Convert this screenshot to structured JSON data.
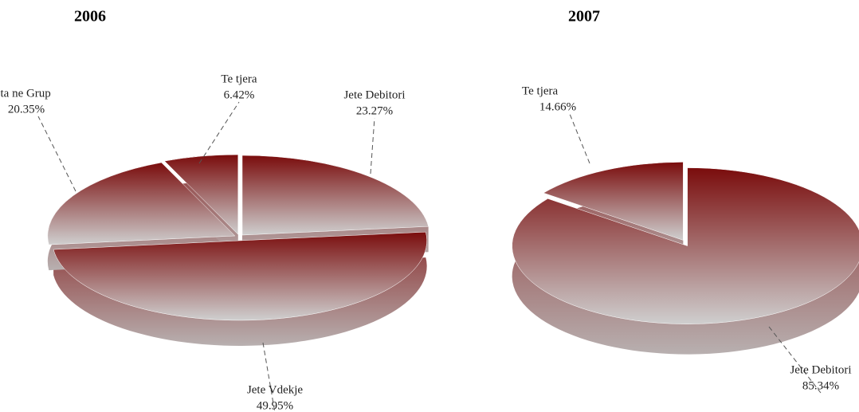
{
  "chart_data": [
    {
      "type": "pie3d",
      "title": "2006",
      "categories": [
        "Jete Debitori",
        "Jete Vdekje",
        "Jeta ne Grup",
        "Te tjera"
      ],
      "values": [
        23.27,
        49.95,
        20.35,
        6.42
      ],
      "value_labels": [
        "23.27%",
        "49.95%",
        "20.35%",
        "6.42%"
      ]
    },
    {
      "type": "pie3d",
      "title": "2007",
      "categories": [
        "Jete Debitori",
        "Te tjera"
      ],
      "values": [
        85.34,
        14.66
      ],
      "value_labels": [
        "85.34%",
        "14.66%"
      ]
    }
  ]
}
